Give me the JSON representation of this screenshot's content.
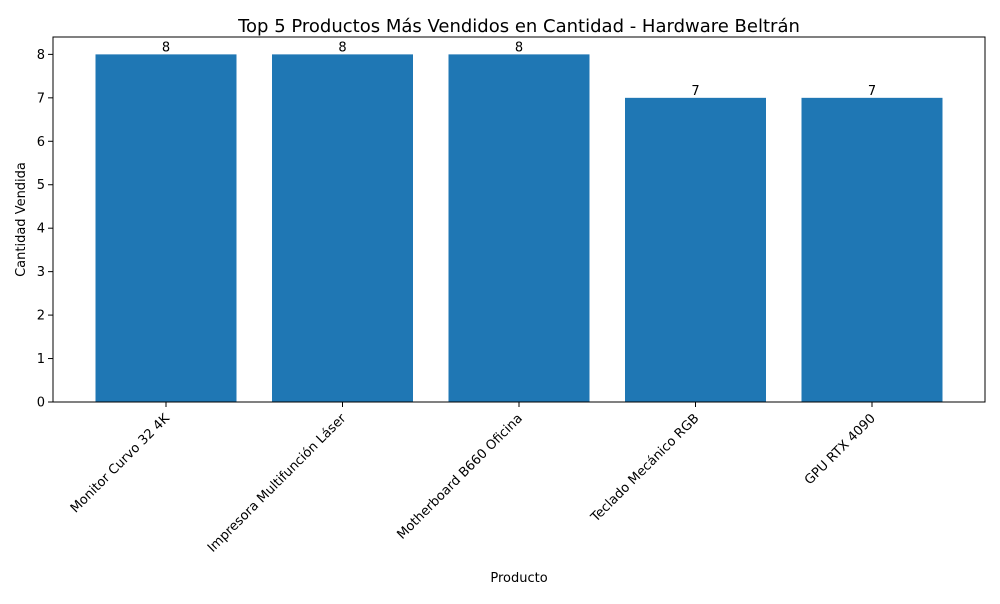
{
  "chart_data": {
    "type": "bar",
    "title": "Top 5 Productos Más Vendidos en Cantidad - Hardware Beltrán",
    "xlabel": "Producto",
    "ylabel": "Cantidad Vendida",
    "categories": [
      "Monitor Curvo 32 4K",
      "Impresora Multifunción Láser",
      "Motherboard B660 Oficina",
      "Teclado Mecánico RGB",
      "GPU RTX 4090"
    ],
    "values": [
      8,
      8,
      8,
      7,
      7
    ],
    "ylim": [
      0,
      8.4
    ],
    "yticks": [
      0,
      1,
      2,
      3,
      4,
      5,
      6,
      7,
      8
    ],
    "bar_color": "#1f77b4",
    "grid": false,
    "legend": "none"
  }
}
